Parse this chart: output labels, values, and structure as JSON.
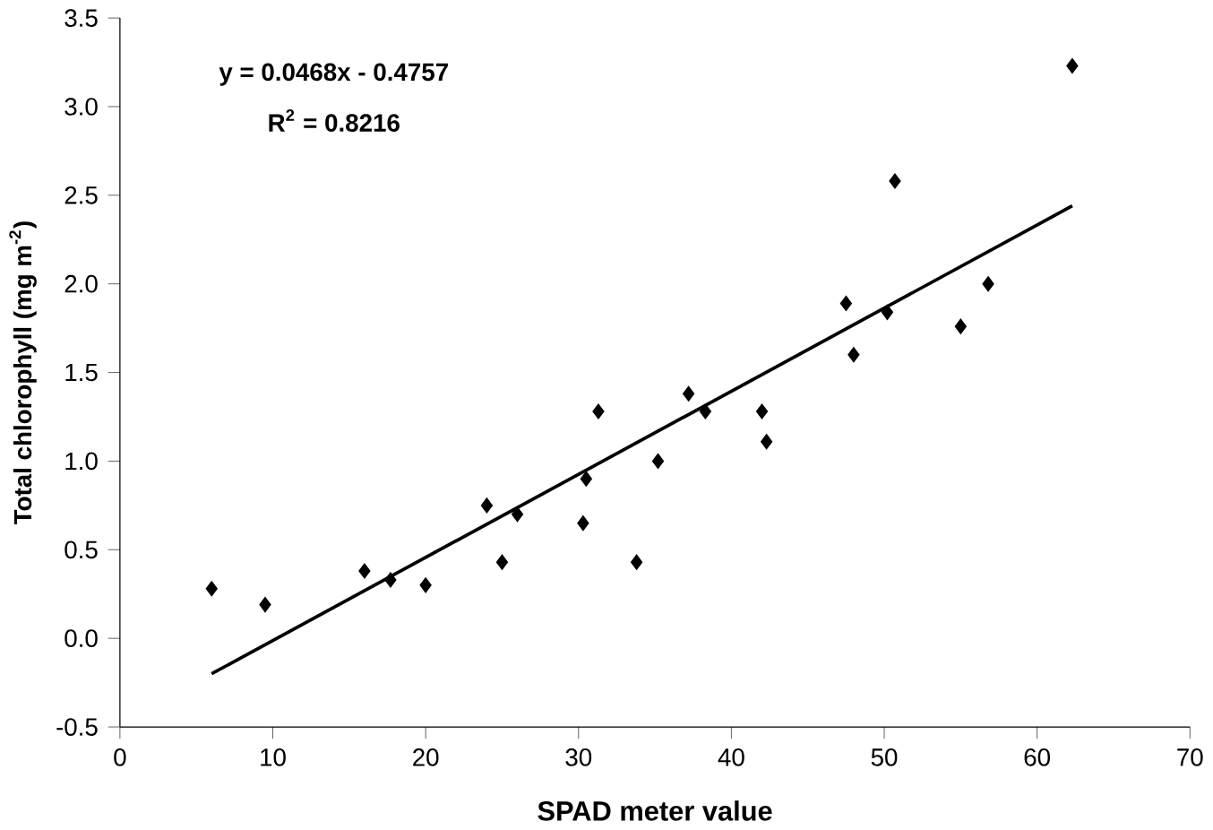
{
  "chart_data": {
    "type": "scatter",
    "xlabel": "SPAD meter value",
    "ylabel": "Total chlorophyll (mg m$^{-2}$)",
    "annotations": [
      "y = 0.0468x - 0.4757",
      "R$^{2}$ = 0.8216"
    ],
    "xlim": [
      0,
      70
    ],
    "xticks": [
      0,
      10,
      20,
      30,
      40,
      50,
      60,
      70
    ],
    "ylim": [
      -0.5,
      3.5
    ],
    "yticks": [
      {
        "value": -0.5,
        "label": "-0.5"
      },
      {
        "value": 0,
        "label": "0.0"
      },
      {
        "value": 0.5,
        "label": "0.5"
      },
      {
        "value": 1,
        "label": "1.0"
      },
      {
        "value": 1.5,
        "label": "1.5"
      },
      {
        "value": 2,
        "label": "2.0"
      },
      {
        "value": 2.5,
        "label": "2.5"
      },
      {
        "value": 3,
        "label": "3.0"
      },
      {
        "value": 3.5,
        "label": "3.5"
      }
    ],
    "grid": false,
    "series": [
      {
        "marker": "diamond",
        "color": "#000000",
        "x": [
          6,
          9.5,
          16,
          17.7,
          20,
          24,
          25,
          26,
          30.3,
          30.5,
          31.3,
          33.8,
          35.2,
          37.2,
          38.3,
          42,
          42.3,
          47.5,
          48,
          50.2,
          50.7,
          55,
          56.8,
          62.3
        ],
        "values": [
          0.28,
          0.19,
          0.38,
          0.33,
          0.3,
          0.75,
          0.43,
          0.7,
          0.65,
          0.9,
          1.28,
          0.43,
          1.0,
          1.38,
          1.28,
          1.28,
          1.11,
          1.89,
          1.6,
          1.84,
          2.58,
          1.76,
          2.0,
          3.23
        ]
      },
      {
        "type": "line",
        "marker": "none",
        "line_style": "solid",
        "color": "#000000",
        "x": [
          6,
          62.3
        ],
        "values": [
          -0.2,
          2.44
        ]
      }
    ]
  }
}
